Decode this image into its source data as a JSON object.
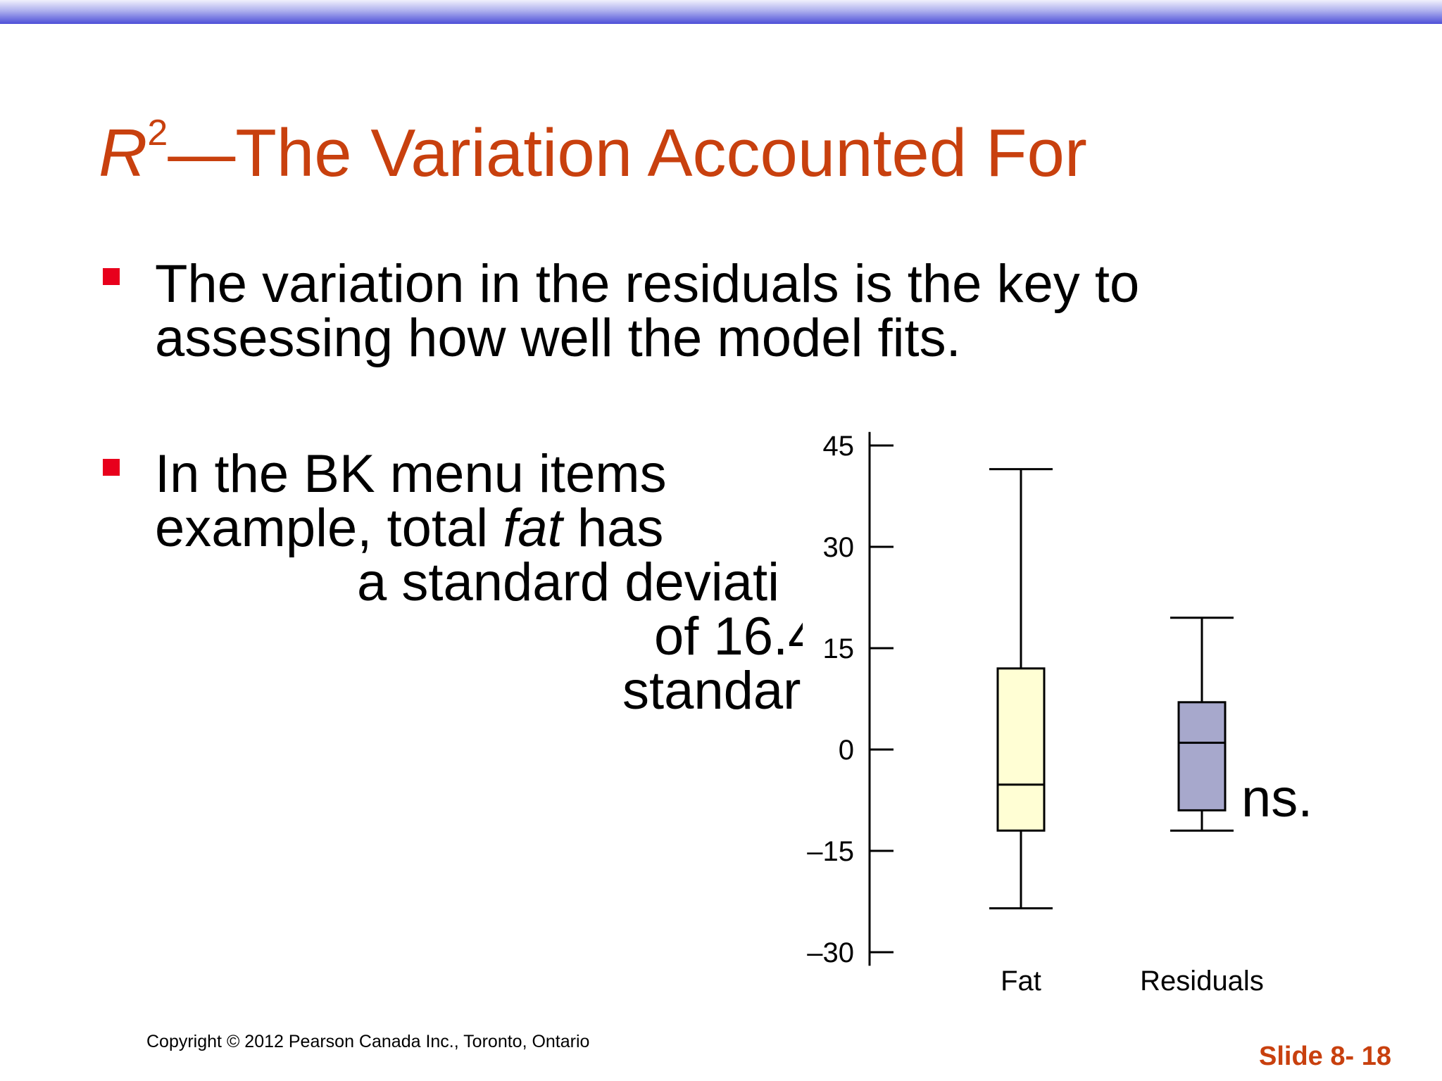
{
  "slide": {
    "title_r": "R",
    "title_sup": "2",
    "title_rest": "—The Variation Accounted For",
    "bullet1": {
      "line1": "The variation in the residuals is the key to",
      "line2": "assessing how well the model fits."
    },
    "bullet2": {
      "line1": "In the BK menu items",
      "line2_a": "example, total ",
      "line2_b": "fat",
      "line2_c": " has",
      "line3": "a standard deviati",
      "line4": "of 16.4",
      "line5": "standar",
      "line6": "ns."
    },
    "copyright": "Copyright © 2012 Pearson Canada Inc., Toronto, Ontario",
    "slide_number": "Slide 8- 18"
  },
  "colors": {
    "title": "#c8400e",
    "bullet": "#e8001c",
    "fat_box": "#fffed4",
    "residuals_box": "#a7a8cc",
    "top_band": "#4d4fd8"
  },
  "chart_data": {
    "type": "boxplot",
    "ylim": [
      -32,
      47
    ],
    "yticks": [
      45,
      30,
      15,
      0,
      -15,
      -30
    ],
    "ytick_labels": [
      "45",
      "30",
      "15",
      "0",
      "–15",
      "–30"
    ],
    "categories": [
      "Fat",
      "Residuals"
    ],
    "boxes": [
      {
        "name": "Fat",
        "min": -23.5,
        "q1": -12,
        "median": -5.2,
        "q3": 12,
        "max": 41.5,
        "color": "#fffed4"
      },
      {
        "name": "Residuals",
        "min": -12,
        "q1": -9,
        "median": 1,
        "q3": 7,
        "max": 19.5,
        "color": "#a7a8cc"
      }
    ]
  }
}
